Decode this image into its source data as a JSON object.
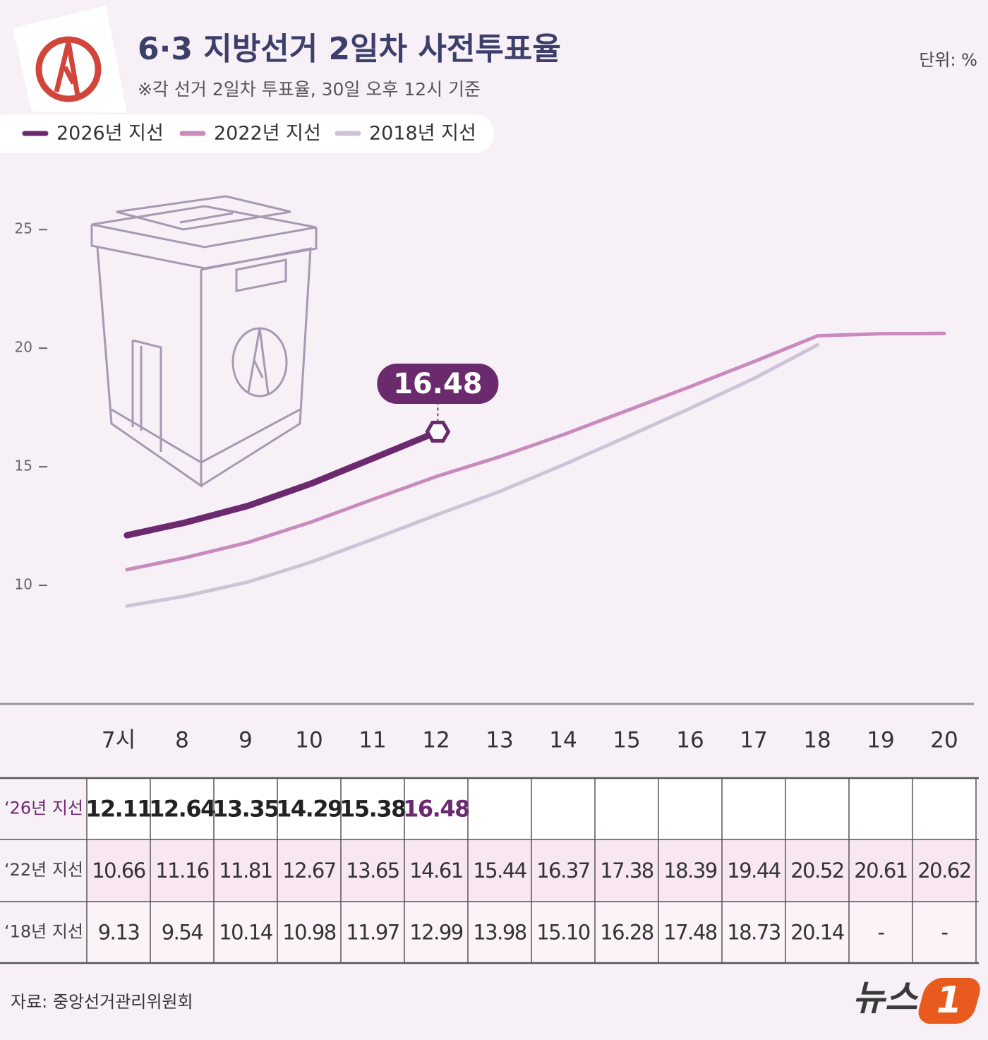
{
  "chart_data": {
    "type": "line",
    "title": "6·3 지방선거 2일차 사전투표율",
    "subtitle": "※각 선거 2일차 투표율, 30일 오후 12시 기준",
    "unit": "단위: %",
    "source": "자료: 중앙선거관리위원회",
    "logo": {
      "text": "뉴스",
      "mark": "1"
    },
    "categories": [
      "7시",
      "8",
      "9",
      "10",
      "11",
      "12",
      "13",
      "14",
      "15",
      "16",
      "17",
      "18",
      "19",
      "20"
    ],
    "series": [
      {
        "name": "2026년 지선",
        "row_label": "‘26년 지선",
        "color": "#6b2a6e",
        "values": [
          12.11,
          12.64,
          13.35,
          14.29,
          15.38,
          16.48,
          null,
          null,
          null,
          null,
          null,
          null,
          null,
          null
        ]
      },
      {
        "name": "2022년 지선",
        "row_label": "‘22년 지선",
        "color": "#c98bbd",
        "values": [
          10.66,
          11.16,
          11.81,
          12.67,
          13.65,
          14.61,
          15.44,
          16.37,
          17.38,
          18.39,
          19.44,
          20.52,
          20.61,
          20.62
        ]
      },
      {
        "name": "2018년 지선",
        "row_label": "‘18년 지선",
        "color": "#cfc3d8",
        "values": [
          9.13,
          9.54,
          10.14,
          10.98,
          11.97,
          12.99,
          13.98,
          15.1,
          16.28,
          17.48,
          18.73,
          20.14,
          null,
          null
        ],
        "value_labels": [
          "9.13",
          "9.54",
          "10.14",
          "10.98",
          "11.97",
          "12.99",
          "13.98",
          "15.10",
          "16.28",
          "17.48",
          "18.73",
          "20.14",
          "-",
          "-"
        ]
      }
    ],
    "ylim": [
      5,
      27
    ],
    "yticks": [
      10,
      15,
      20,
      25
    ]
  }
}
